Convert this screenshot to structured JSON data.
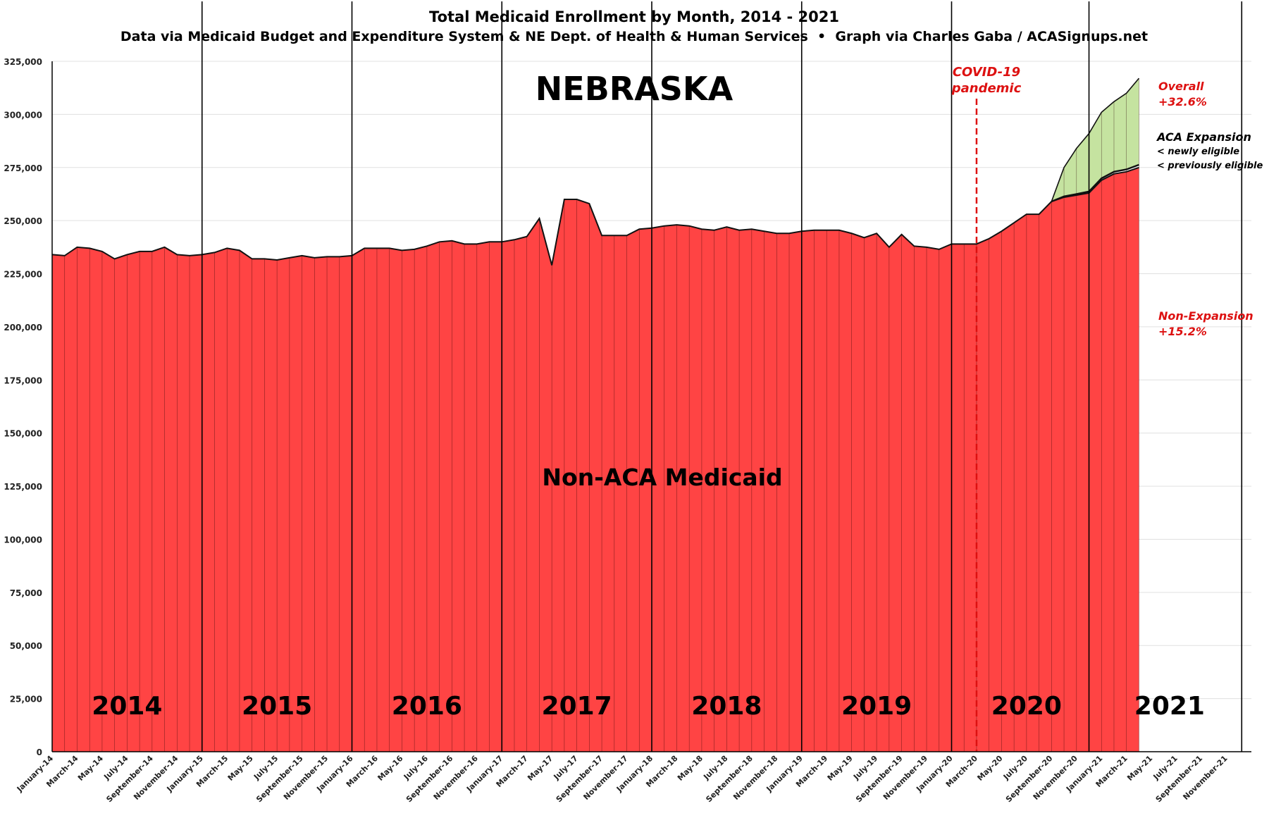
{
  "chart_data": {
    "type": "area",
    "title": "Total Medicaid Enrollment by Month, 2014 - 2021",
    "subtitle": "Data via Medicaid Budget and Expenditure System & NE Dept. of Health & Human Services  •  Graph via Charles Gaba / ACASignups.net",
    "state_label": "NEBRASKA",
    "center_label": "Non-ACA Medicaid",
    "ylim": [
      0,
      325000
    ],
    "y_ticks": [
      "0",
      "25,000",
      "50,000",
      "75,000",
      "100,000",
      "125,000",
      "150,000",
      "175,000",
      "200,000",
      "225,000",
      "250,000",
      "275,000",
      "300,000",
      "325,000"
    ],
    "x_tick_labels": [
      "January-14",
      "March-14",
      "May-14",
      "July-14",
      "September-14",
      "November-14",
      "January-15",
      "March-15",
      "May-15",
      "July-15",
      "September-15",
      "November-15",
      "January-16",
      "March-16",
      "May-16",
      "July-16",
      "September-16",
      "November-16",
      "January-17",
      "March-17",
      "May-17",
      "July-17",
      "September-17",
      "November-17",
      "January-18",
      "March-18",
      "May-18",
      "July-18",
      "September-18",
      "November-18",
      "January-19",
      "March-19",
      "May-19",
      "July-19",
      "September-19",
      "November-19",
      "January-20",
      "March-20",
      "May-20",
      "July-20",
      "September-20",
      "November-20",
      "January-21",
      "March-21",
      "May-21",
      "July-21",
      "September-21",
      "November-21"
    ],
    "year_labels": [
      "2014",
      "2015",
      "2016",
      "2017",
      "2018",
      "2019",
      "2020",
      "2021"
    ],
    "year_label_month_index": [
      6,
      18,
      30,
      42,
      54,
      66,
      78,
      89
    ],
    "year_divider_month_index": [
      12,
      24,
      36,
      48,
      60,
      72,
      83
    ],
    "months_total": 96,
    "series": [
      {
        "name": "Non-ACA Medicaid",
        "color": "#ff4444",
        "values": [
          234000,
          233500,
          237500,
          237000,
          235500,
          232000,
          234000,
          235500,
          235500,
          237500,
          234000,
          233500,
          234000,
          235000,
          237000,
          236000,
          232000,
          232000,
          231500,
          232500,
          233500,
          232500,
          233000,
          233000,
          233500,
          237000,
          237000,
          237000,
          236000,
          236500,
          238000,
          240000,
          240500,
          239000,
          239000,
          240000,
          240000,
          241000,
          242500,
          251000,
          229000,
          260000,
          260000,
          258000,
          243000,
          243000,
          243000,
          246000,
          246500,
          247500,
          248000,
          247500,
          246000,
          245500,
          247000,
          245500,
          246000,
          245000,
          244000,
          244000,
          245000,
          245500,
          245500,
          245500,
          244000,
          242000,
          244000,
          237500,
          243500,
          238000,
          237500,
          236500,
          239000,
          239000,
          239000,
          241500,
          245000,
          249000,
          253000,
          253000,
          259000,
          261000,
          262000,
          263000,
          269000,
          272000,
          273000,
          275000
        ]
      },
      {
        "name": "previously eligible",
        "color": "#1a1a1a",
        "values": [
          0,
          0,
          0,
          0,
          0,
          0,
          0,
          0,
          0,
          0,
          0,
          0,
          0,
          0,
          0,
          0,
          0,
          0,
          0,
          0,
          0,
          0,
          0,
          0,
          0,
          0,
          0,
          0,
          0,
          0,
          0,
          0,
          0,
          0,
          0,
          0,
          0,
          0,
          0,
          0,
          0,
          0,
          0,
          0,
          0,
          0,
          0,
          0,
          0,
          0,
          0,
          0,
          0,
          0,
          0,
          0,
          0,
          0,
          0,
          0,
          0,
          0,
          0,
          0,
          0,
          0,
          0,
          0,
          0,
          0,
          0,
          0,
          0,
          0,
          0,
          0,
          0,
          0,
          0,
          0,
          0,
          400,
          500,
          700,
          900,
          1000,
          1100,
          1300
        ]
      },
      {
        "name": "newly eligible",
        "color": "#c5e3a0",
        "values": [
          0,
          0,
          0,
          0,
          0,
          0,
          0,
          0,
          0,
          0,
          0,
          0,
          0,
          0,
          0,
          0,
          0,
          0,
          0,
          0,
          0,
          0,
          0,
          0,
          0,
          0,
          0,
          0,
          0,
          0,
          0,
          0,
          0,
          0,
          0,
          0,
          0,
          0,
          0,
          0,
          0,
          0,
          0,
          0,
          0,
          0,
          0,
          0,
          0,
          0,
          0,
          0,
          0,
          0,
          0,
          0,
          0,
          0,
          0,
          0,
          0,
          0,
          0,
          0,
          0,
          0,
          0,
          0,
          0,
          0,
          0,
          0,
          0,
          0,
          0,
          0,
          0,
          0,
          0,
          0,
          0,
          13600,
          21500,
          27300,
          31100,
          33000,
          35900,
          40700
        ]
      }
    ],
    "covid_marker": {
      "label_line1": "COVID-19",
      "label_line2": "pandemic",
      "month_index": 74,
      "color": "#dd1111"
    },
    "annotations": {
      "overall_line1": "Overall",
      "overall_line2": "+32.6%",
      "aca_title": "ACA Expansion",
      "newly": "< newly eligible",
      "previously": "< previously eligible",
      "nonexp_line1": "Non-Expansion",
      "nonexp_line2": "+15.2%"
    },
    "grid": true
  }
}
